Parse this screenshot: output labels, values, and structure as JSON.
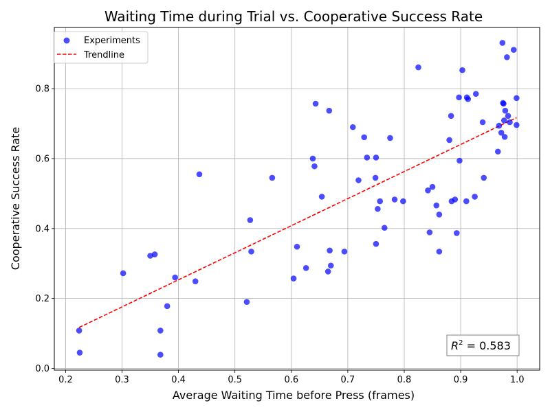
{
  "chart_data": {
    "type": "scatter",
    "title": "Waiting Time during Trial vs. Cooperative Success Rate",
    "xlabel": "Average Waiting Time before Press (frames)",
    "ylabel": "Cooperative Success Rate",
    "xlim": [
      0.18,
      1.04
    ],
    "ylim": [
      -0.005,
      0.975
    ],
    "xticks": [
      0.2,
      0.3,
      0.4,
      0.5,
      0.6,
      0.7,
      0.8,
      0.9,
      1.0
    ],
    "xtick_labels": [
      "0.2",
      "0.3",
      "0.4",
      "0.5",
      "0.6",
      "0.7",
      "0.8",
      "0.9",
      "1.0"
    ],
    "yticks": [
      0.0,
      0.2,
      0.4,
      0.6,
      0.8
    ],
    "ytick_labels": [
      "0.0",
      "0.2",
      "0.4",
      "0.6",
      "0.8"
    ],
    "grid": true,
    "legend_position": "top-left",
    "series": [
      {
        "name": "Experiments",
        "kind": "scatter",
        "color": "#0000ff",
        "points": [
          [
            0.224,
            0.108
          ],
          [
            0.225,
            0.045
          ],
          [
            0.302,
            0.272
          ],
          [
            0.35,
            0.322
          ],
          [
            0.358,
            0.326
          ],
          [
            0.368,
            0.108
          ],
          [
            0.368,
            0.039
          ],
          [
            0.38,
            0.178
          ],
          [
            0.394,
            0.26
          ],
          [
            0.43,
            0.249
          ],
          [
            0.437,
            0.555
          ],
          [
            0.521,
            0.19
          ],
          [
            0.527,
            0.424
          ],
          [
            0.529,
            0.334
          ],
          [
            0.566,
            0.545
          ],
          [
            0.604,
            0.257
          ],
          [
            0.61,
            0.348
          ],
          [
            0.626,
            0.287
          ],
          [
            0.638,
            0.6
          ],
          [
            0.641,
            0.578
          ],
          [
            0.643,
            0.757
          ],
          [
            0.654,
            0.491
          ],
          [
            0.665,
            0.277
          ],
          [
            0.667,
            0.737
          ],
          [
            0.668,
            0.337
          ],
          [
            0.67,
            0.294
          ],
          [
            0.694,
            0.334
          ],
          [
            0.709,
            0.69
          ],
          [
            0.719,
            0.538
          ],
          [
            0.729,
            0.661
          ],
          [
            0.734,
            0.603
          ],
          [
            0.749,
            0.545
          ],
          [
            0.75,
            0.603
          ],
          [
            0.75,
            0.356
          ],
          [
            0.753,
            0.456
          ],
          [
            0.757,
            0.478
          ],
          [
            0.765,
            0.402
          ],
          [
            0.775,
            0.659
          ],
          [
            0.783,
            0.483
          ],
          [
            0.798,
            0.478
          ],
          [
            0.825,
            0.861
          ],
          [
            0.842,
            0.509
          ],
          [
            0.845,
            0.389
          ],
          [
            0.85,
            0.519
          ],
          [
            0.857,
            0.466
          ],
          [
            0.862,
            0.44
          ],
          [
            0.862,
            0.334
          ],
          [
            0.88,
            0.653
          ],
          [
            0.883,
            0.722
          ],
          [
            0.884,
            0.478
          ],
          [
            0.89,
            0.483
          ],
          [
            0.893,
            0.387
          ],
          [
            0.897,
            0.775
          ],
          [
            0.898,
            0.594
          ],
          [
            0.903,
            0.853
          ],
          [
            0.91,
            0.478
          ],
          [
            0.911,
            0.775
          ],
          [
            0.913,
            0.77
          ],
          [
            0.925,
            0.491
          ],
          [
            0.927,
            0.785
          ],
          [
            0.939,
            0.704
          ],
          [
            0.941,
            0.545
          ],
          [
            0.966,
            0.62
          ],
          [
            0.968,
            0.694
          ],
          [
            0.972,
            0.674
          ],
          [
            0.974,
            0.931
          ],
          [
            0.975,
            0.759
          ],
          [
            0.976,
            0.757
          ],
          [
            0.977,
            0.709
          ],
          [
            0.978,
            0.662
          ],
          [
            0.979,
            0.737
          ],
          [
            0.982,
            0.89
          ],
          [
            0.984,
            0.722
          ],
          [
            0.987,
            0.704
          ],
          [
            0.994,
            0.911
          ],
          [
            0.999,
            0.773
          ],
          [
            0.999,
            0.696
          ]
        ]
      },
      {
        "name": "Trendline",
        "kind": "line",
        "color": "#ff0000",
        "points": [
          [
            0.224,
            0.117
          ],
          [
            0.999,
            0.717
          ]
        ]
      }
    ],
    "annotation": {
      "label_prefix": "R",
      "label_sup": "2",
      "label_rest": " = 0.583",
      "position": "bottom-right"
    }
  }
}
